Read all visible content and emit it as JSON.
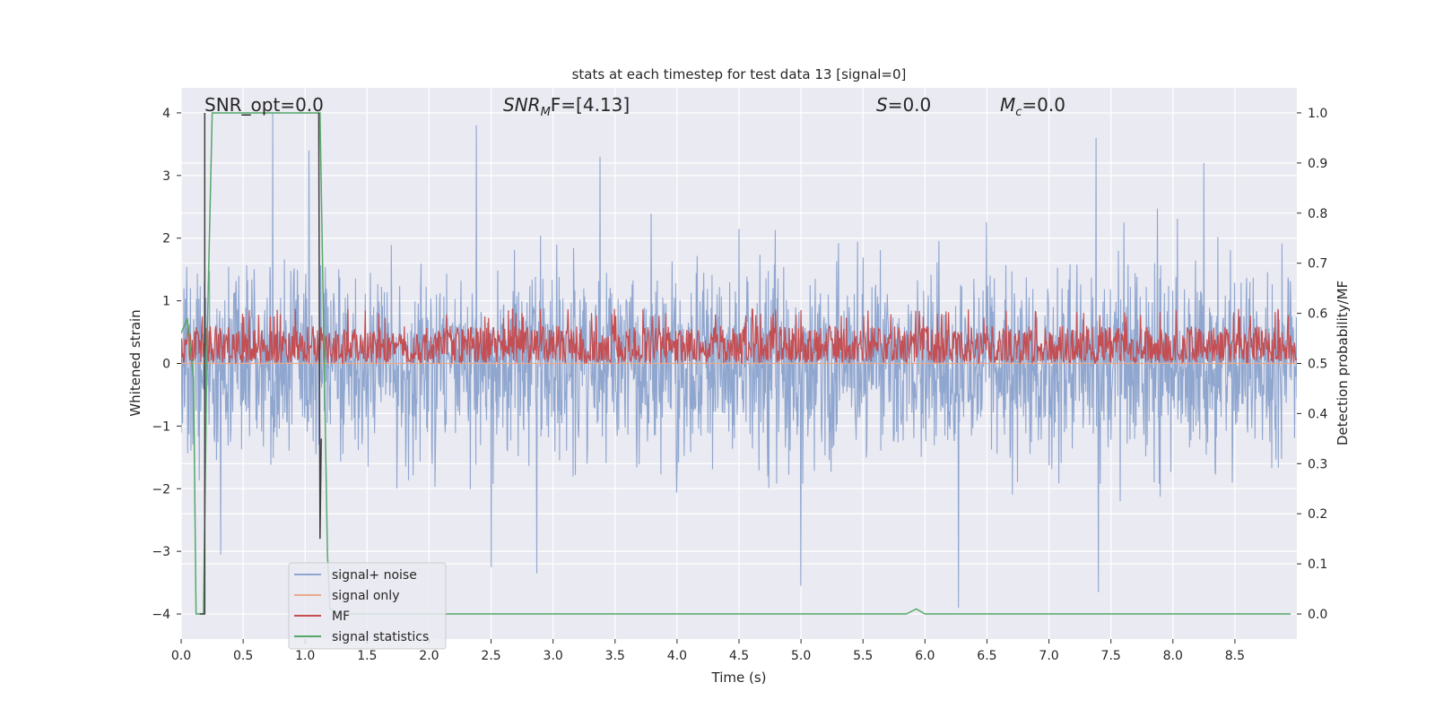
{
  "chart_data": {
    "type": "line",
    "title": "stats at each timestep for test data 13 [signal=0]",
    "xlabel": "Time (s)",
    "ylabel_left": "Whitened strain",
    "ylabel_right": "Detection probability/MF",
    "xlim": [
      0,
      9
    ],
    "ylim_left": [
      -4.4,
      4.4
    ],
    "ylim_right": [
      -0.05,
      1.05
    ],
    "x_ticks": [
      "0.0",
      "0.5",
      "1.0",
      "1.5",
      "2.0",
      "2.5",
      "3.0",
      "3.5",
      "4.0",
      "4.5",
      "5.0",
      "5.5",
      "6.0",
      "6.5",
      "7.0",
      "7.5",
      "8.0",
      "8.5"
    ],
    "y_ticks_left": [
      "−4",
      "−3",
      "−2",
      "−1",
      "0",
      "1",
      "2",
      "3",
      "4"
    ],
    "y_ticks_right": [
      "0.0",
      "0.1",
      "0.2",
      "0.3",
      "0.4",
      "0.5",
      "0.6",
      "0.7",
      "0.8",
      "0.9",
      "1.0"
    ],
    "grid": true,
    "legend_position": "lower-left",
    "annotations": {
      "snr_opt": "SNR_opt=0.0",
      "snr_mf_base": "SNR",
      "snr_mf_sub": "M",
      "snr_mf_rest": "F=[4.13]",
      "s_label": "S",
      "s_value": "=0.0",
      "mc_base": "M",
      "mc_sub": "c",
      "mc_value": "=0.0"
    },
    "series": [
      {
        "name": "signal+ noise",
        "axis": "left",
        "color": "#8fa6cf",
        "style": "noise",
        "rms": 0.75,
        "peaks": [
          [
            0.74,
            4.0
          ],
          [
            1.03,
            3.4
          ],
          [
            2.38,
            3.8
          ],
          [
            3.38,
            3.3
          ],
          [
            7.38,
            3.6
          ],
          [
            8.25,
            3.2
          ],
          [
            0.32,
            -3.05
          ],
          [
            5.0,
            -3.55
          ],
          [
            6.27,
            -3.9
          ],
          [
            7.4,
            -3.65
          ],
          [
            2.87,
            -3.35
          ],
          [
            2.5,
            -3.25
          ]
        ]
      },
      {
        "name": "signal only",
        "axis": "left",
        "color": "#e8a98a",
        "style": "flat",
        "value": 0
      },
      {
        "name": "MF",
        "axis": "right",
        "color": "#c44e52",
        "style": "mf",
        "baseline": 0.5,
        "mean": 0.54,
        "max": 0.61
      },
      {
        "name": "signal statistics",
        "axis": "right",
        "color": "#55a868",
        "style": "line",
        "points": [
          [
            0.0,
            0.56
          ],
          [
            0.05,
            0.59
          ],
          [
            0.1,
            0.47
          ],
          [
            0.12,
            0.0
          ],
          [
            0.18,
            0.0
          ],
          [
            0.21,
            0.55
          ],
          [
            0.25,
            1.0
          ],
          [
            1.12,
            1.0
          ],
          [
            1.18,
            0.12
          ],
          [
            1.2,
            0.01
          ],
          [
            1.3,
            0.0
          ],
          [
            5.85,
            0.0
          ],
          [
            5.93,
            0.01
          ],
          [
            6.0,
            0.0
          ],
          [
            8.95,
            0.0
          ]
        ]
      },
      {
        "name": "",
        "axis": "right",
        "color": "#404040",
        "style": "line",
        "points": [
          [
            0.15,
            0.0
          ],
          [
            0.19,
            0.0
          ],
          [
            0.19,
            1.0
          ],
          [
            0.19,
            0.0
          ]
        ]
      },
      {
        "name": "",
        "axis": "right",
        "color": "#404040",
        "style": "line",
        "points": [
          [
            1.11,
            1.0
          ],
          [
            1.12,
            0.15
          ],
          [
            1.13,
            0.35
          ]
        ]
      }
    ]
  }
}
